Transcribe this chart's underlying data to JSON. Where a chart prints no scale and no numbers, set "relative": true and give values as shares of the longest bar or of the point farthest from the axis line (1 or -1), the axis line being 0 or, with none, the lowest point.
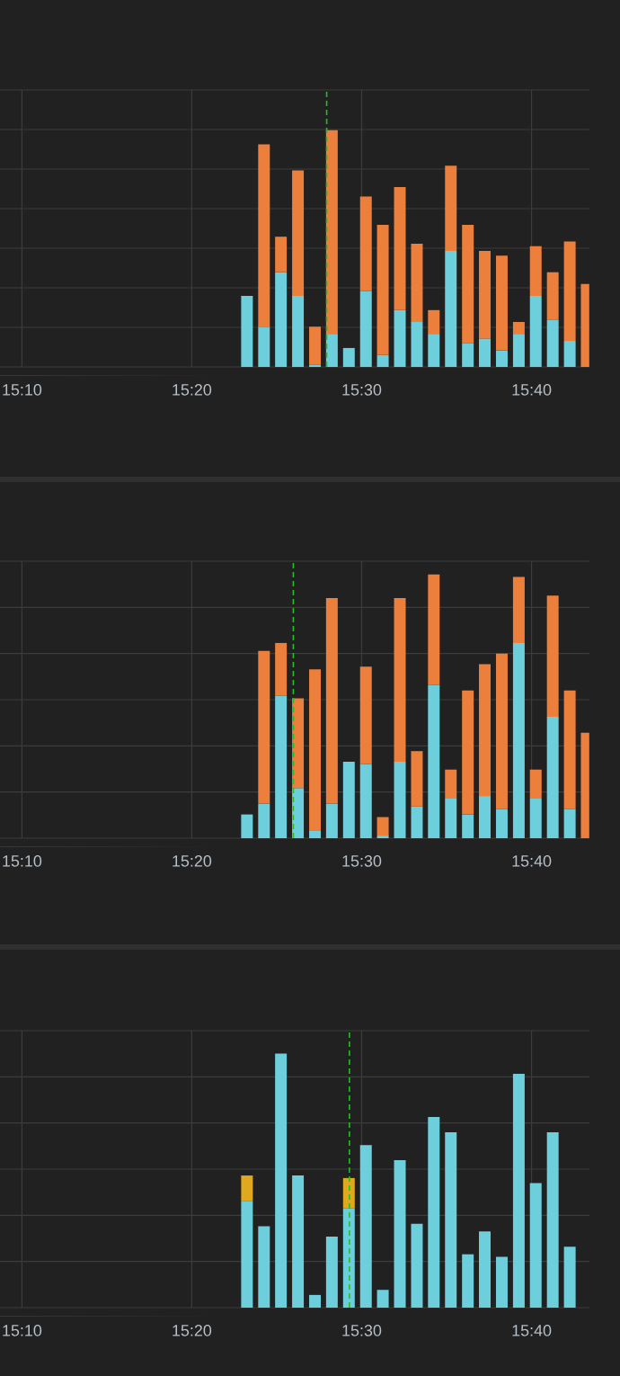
{
  "chart_data": [
    {
      "type": "bar",
      "stacked": true,
      "relative": true,
      "grid": true,
      "x": [
        15.3875,
        15.4042,
        15.4208,
        15.4375,
        15.4542,
        15.4708,
        15.4875,
        15.5042,
        15.5208,
        15.5375,
        15.5542,
        15.5708,
        15.5875,
        15.6042,
        15.6208,
        15.6375,
        15.6542,
        15.6708,
        15.6875,
        15.7042,
        15.7208
      ],
      "series": [
        {
          "color": "#6ecfdc",
          "values": [
            0.3,
            0.17,
            0.4,
            0.3,
            0.01,
            0.14,
            0.08,
            0.32,
            0.05,
            0.24,
            0.19,
            0.14,
            0.49,
            0.1,
            0.12,
            0.07,
            0.14,
            0.3,
            0.2,
            0.11,
            null
          ]
        },
        {
          "color": "#eb7f3b",
          "values": [
            null,
            0.77,
            0.15,
            0.53,
            0.16,
            0.86,
            null,
            0.4,
            0.55,
            0.52,
            0.33,
            0.1,
            0.36,
            0.5,
            0.37,
            0.4,
            0.05,
            0.21,
            0.2,
            0.42,
            0.35
          ]
        }
      ],
      "xlim": [
        15.145,
        15.7233
      ],
      "xticks": [
        {
          "value": 15.1667,
          "label": "15:10"
        },
        {
          "value": 15.3333,
          "label": "15:20"
        },
        {
          "value": 15.5,
          "label": "15:30"
        },
        {
          "value": 15.6667,
          "label": "15:40"
        }
      ],
      "ref_lines": [
        {
          "axis": "x",
          "value": 15.4657,
          "color": "#22c022",
          "line_style": "dashed"
        }
      ]
    },
    {
      "type": "bar",
      "stacked": true,
      "relative": true,
      "grid": true,
      "x": [
        15.3875,
        15.4042,
        15.4208,
        15.4375,
        15.4542,
        15.4708,
        15.4875,
        15.5042,
        15.5208,
        15.5375,
        15.5542,
        15.5708,
        15.5875,
        15.6042,
        15.6208,
        15.6375,
        15.6542,
        15.6708,
        15.6875,
        15.7042,
        15.7208
      ],
      "series": [
        {
          "color": "#6ecfdc",
          "values": [
            0.09,
            0.13,
            0.54,
            0.19,
            0.03,
            0.13,
            0.29,
            0.28,
            0.01,
            0.29,
            0.12,
            0.58,
            0.15,
            0.09,
            0.16,
            0.11,
            0.74,
            0.15,
            0.46,
            0.11,
            null
          ]
        },
        {
          "color": "#eb7f3b",
          "values": [
            null,
            0.58,
            0.2,
            0.34,
            0.61,
            0.78,
            null,
            0.37,
            0.07,
            0.62,
            0.21,
            0.42,
            0.11,
            0.47,
            0.5,
            0.59,
            0.25,
            0.11,
            0.46,
            0.45,
            0.4
          ]
        }
      ],
      "xlim": [
        15.145,
        15.7233
      ],
      "xticks": [
        {
          "value": 15.1667,
          "label": "15:10"
        },
        {
          "value": 15.3333,
          "label": "15:20"
        },
        {
          "value": 15.5,
          "label": "15:30"
        },
        {
          "value": 15.6667,
          "label": "15:40"
        }
      ],
      "ref_lines": [
        {
          "axis": "x",
          "value": 15.433,
          "color": "#22c022",
          "line_style": "dashed"
        }
      ]
    },
    {
      "type": "bar",
      "stacked": true,
      "relative": true,
      "grid": true,
      "x": [
        15.3875,
        15.4042,
        15.4208,
        15.4375,
        15.4542,
        15.4708,
        15.4875,
        15.5042,
        15.5208,
        15.5375,
        15.5542,
        15.5708,
        15.5875,
        15.6042,
        15.6208,
        15.6375,
        15.6542,
        15.6708,
        15.6875,
        15.7042
      ],
      "series": [
        {
          "color": "#6ecfdc",
          "values": [
            0.42,
            0.32,
            1.0,
            0.52,
            0.05,
            0.28,
            0.39,
            0.64,
            0.07,
            0.58,
            0.33,
            0.75,
            0.69,
            0.21,
            0.3,
            0.2,
            0.92,
            0.49,
            0.69,
            0.24
          ]
        },
        {
          "color": "#e0a81c",
          "values": [
            0.1,
            null,
            null,
            null,
            null,
            null,
            0.12,
            null,
            null,
            null,
            null,
            null,
            null,
            null,
            null,
            null,
            null,
            null,
            null,
            null
          ]
        }
      ],
      "xlim": [
        15.145,
        15.7233
      ],
      "xticks": [
        {
          "value": 15.1667,
          "label": "15:10"
        },
        {
          "value": 15.3333,
          "label": "15:20"
        },
        {
          "value": 15.5,
          "label": "15:30"
        },
        {
          "value": 15.6667,
          "label": "15:40"
        }
      ],
      "ref_lines": [
        {
          "axis": "x",
          "value": 15.488,
          "color": "#22c022",
          "line_style": "dashed"
        }
      ]
    }
  ]
}
